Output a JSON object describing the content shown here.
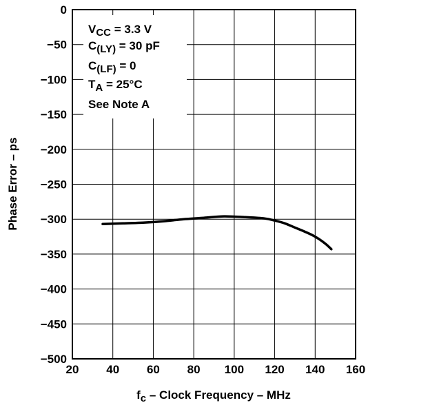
{
  "chart_data": {
    "type": "line",
    "xlabel_main": "f",
    "xlabel_sub": "c",
    "xlabel_rest": " – Clock Frequency – MHz",
    "ylabel": "Phase Error – ps",
    "xlim": [
      20,
      160
    ],
    "ylim": [
      -500,
      0
    ],
    "xticks": [
      20,
      40,
      60,
      80,
      100,
      120,
      140,
      160
    ],
    "yticks": [
      0,
      -50,
      -100,
      -150,
      -200,
      -250,
      -300,
      -350,
      -400,
      -450,
      -500
    ],
    "xtick_labels": [
      "20",
      "40",
      "60",
      "80",
      "100",
      "120",
      "140",
      "160"
    ],
    "ytick_labels": [
      "0",
      "−50",
      "−100",
      "−150",
      "−200",
      "−250",
      "−300",
      "−350",
      "−400",
      "−450",
      "−500"
    ],
    "grid": true,
    "series": [
      {
        "x": [
          35,
          45,
          55,
          65,
          75,
          85,
          95,
          105,
          115,
          120,
          125,
          130,
          135,
          140,
          145,
          148
        ],
        "values": [
          -307,
          -306,
          -305,
          -303,
          -300,
          -298,
          -296,
          -297,
          -299,
          -302,
          -306,
          -312,
          -318,
          -325,
          -335,
          -343
        ]
      }
    ],
    "annotations": {
      "line1_main": "V",
      "line1_sub": "CC",
      "line1_rest": " = 3.3 V",
      "line2_main": "C",
      "line2_sub": "(LY)",
      "line2_rest": " = 30 pF",
      "line3_main": "C",
      "line3_sub": "(LF)",
      "line3_rest": " = 0",
      "line4_main": "T",
      "line4_sub": "A",
      "line4_rest": " = 25°C",
      "line5": "See Note A"
    }
  }
}
